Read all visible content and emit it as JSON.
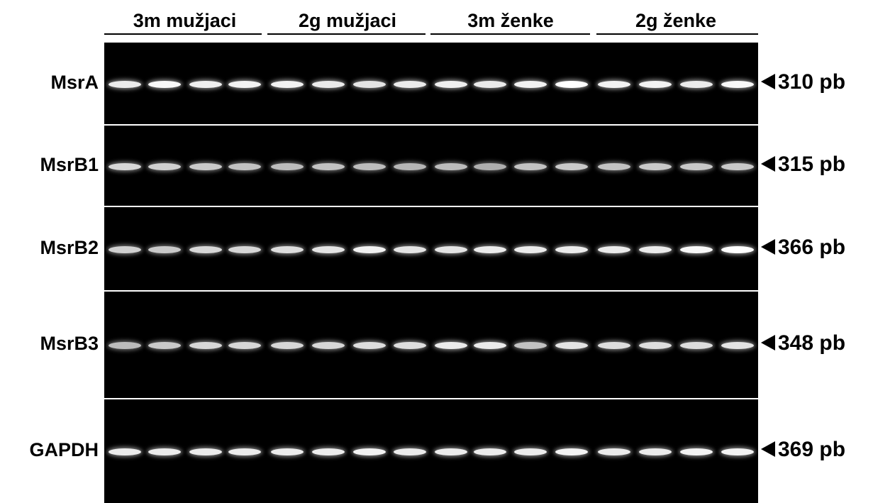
{
  "groups": [
    {
      "label": "3m mužjaci"
    },
    {
      "label": "2g mužjaci"
    },
    {
      "label": "3m ženke"
    },
    {
      "label": "2g ženke"
    }
  ],
  "rows": [
    {
      "gene": "MsrA",
      "size": "310 pb",
      "intensities": [
        0.85,
        0.95,
        0.88,
        0.9,
        0.9,
        0.85,
        0.8,
        0.85,
        0.88,
        0.85,
        0.9,
        1.0,
        0.9,
        0.9,
        0.85,
        0.95
      ]
    },
    {
      "gene": "MsrB1",
      "size": "315 pb",
      "intensities": [
        0.7,
        0.65,
        0.6,
        0.55,
        0.5,
        0.55,
        0.5,
        0.45,
        0.5,
        0.4,
        0.55,
        0.6,
        0.55,
        0.6,
        0.6,
        0.6
      ]
    },
    {
      "gene": "MsrB2",
      "size": "366 pb",
      "intensities": [
        0.65,
        0.6,
        0.7,
        0.7,
        0.75,
        0.8,
        0.9,
        0.8,
        0.8,
        0.85,
        0.85,
        0.85,
        0.85,
        0.85,
        0.95,
        1.0
      ]
    },
    {
      "gene": "MsrB3",
      "size": "348 pb",
      "intensities": [
        0.5,
        0.6,
        0.7,
        0.7,
        0.7,
        0.7,
        0.75,
        0.75,
        0.85,
        0.85,
        0.55,
        0.8,
        0.75,
        0.75,
        0.75,
        0.8
      ]
    },
    {
      "gene": "GAPDH",
      "size": "369 pb",
      "intensities": [
        0.85,
        0.85,
        0.85,
        0.85,
        0.85,
        0.85,
        0.9,
        0.85,
        0.85,
        0.85,
        0.85,
        0.9,
        0.85,
        0.85,
        0.9,
        0.9
      ]
    }
  ]
}
